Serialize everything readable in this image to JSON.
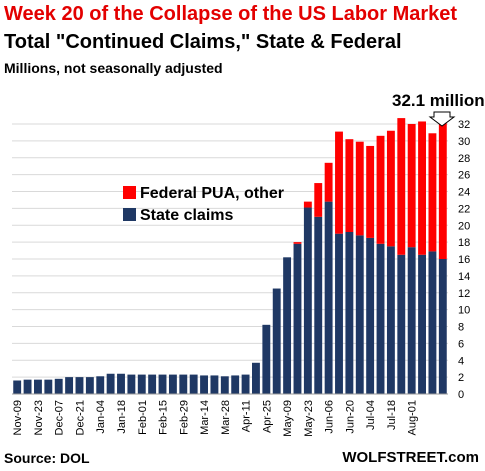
{
  "title": "Week 20 of the Collapse of the US Labor Market",
  "subtitle": "Total \"Continued Claims,\" State & Federal",
  "units": "Millions, not seasonally adjusted",
  "source": "Source: DOL",
  "brand": "WOLFSTREET.com",
  "callout": "32.1 million",
  "colors": {
    "federal": "#ff0000",
    "state": "#1f3864",
    "grid": "#d9d9d9",
    "title": "#e30000"
  },
  "chart_data": {
    "type": "bar",
    "stacked": true,
    "ylim": [
      0,
      32
    ],
    "yticks": [
      "0",
      "2",
      "4",
      "6",
      "8",
      "10",
      "12",
      "14",
      "16",
      "18",
      "20",
      "22",
      "24",
      "26",
      "28",
      "30",
      "32"
    ],
    "x_tick_labels": [
      "Nov-09",
      "Nov-23",
      "Dec-07",
      "Dec-21",
      "Jan-04",
      "Jan-18",
      "Feb-01",
      "Feb-15",
      "Feb-29",
      "Mar-14",
      "Mar-28",
      "Apr-11",
      "Apr-25",
      "May-09",
      "May-23",
      "Jun-06",
      "Jun-20",
      "Jul-04",
      "Jul-18",
      "Aug-01"
    ],
    "grid": true,
    "legend_position": "upper-middle",
    "series": [
      {
        "name": "State claims",
        "color": "#1f3864",
        "values": [
          1.6,
          1.7,
          1.7,
          1.7,
          1.8,
          2.0,
          2.0,
          2.0,
          2.1,
          2.4,
          2.4,
          2.3,
          2.3,
          2.3,
          2.3,
          2.3,
          2.3,
          2.3,
          2.2,
          2.2,
          2.1,
          2.2,
          2.3,
          3.7,
          8.2,
          12.5,
          16.2,
          17.8,
          22.1,
          21.0,
          22.8,
          19.0,
          19.2,
          18.8,
          18.5,
          17.8,
          17.5,
          16.5,
          17.4,
          16.5,
          16.9,
          16.0
        ]
      },
      {
        "name": "Federal PUA, other",
        "color": "#ff0000",
        "values": [
          0,
          0,
          0,
          0,
          0,
          0,
          0,
          0,
          0,
          0,
          0,
          0,
          0,
          0,
          0,
          0,
          0,
          0,
          0,
          0,
          0,
          0,
          0,
          0,
          0,
          0,
          0,
          0.2,
          0.7,
          4.0,
          4.6,
          12.1,
          11.0,
          11.1,
          10.9,
          12.8,
          13.7,
          16.2,
          14.6,
          15.8,
          14.0,
          16.1
        ]
      }
    ],
    "legend_order": [
      "Federal PUA, other",
      "State claims"
    ]
  }
}
